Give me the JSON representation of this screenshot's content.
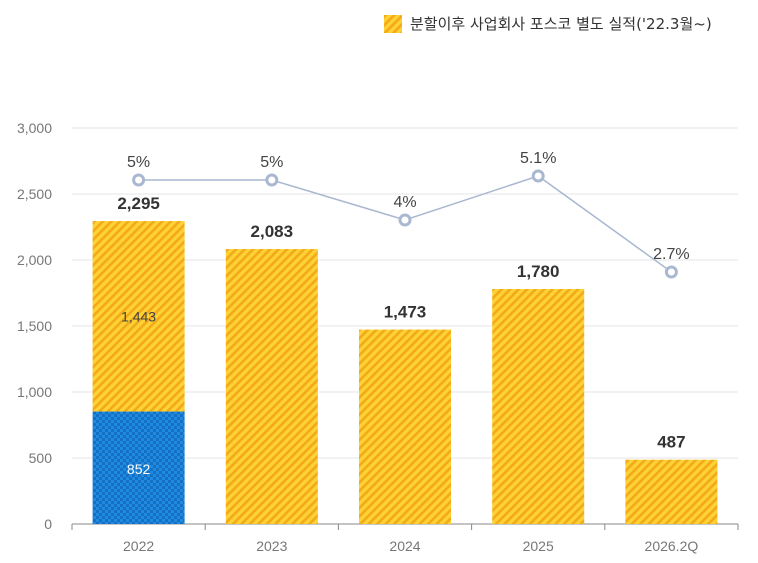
{
  "legend": {
    "label": "분할이후 사업회사 포스코 별도 실적('22.3월~)",
    "color": "#F5BE1E"
  },
  "chart_data": {
    "type": "bar",
    "categories": [
      "2022",
      "2023",
      "2024",
      "2025",
      "2026.2Q"
    ],
    "ylim": [
      0,
      3000
    ],
    "yticks": [
      "0",
      "500",
      "1,000",
      "1,500",
      "2,000",
      "2,500",
      "3,000"
    ],
    "grid": true,
    "legend_position": "top-right",
    "series": [
      {
        "name": "",
        "values": [
          852,
          null,
          null,
          null,
          null
        ],
        "color": "#1E88E5",
        "labels": [
          "852",
          "",
          "",
          "",
          ""
        ]
      },
      {
        "name": "분할이후 사업회사 포스코 별도 실적('22.3월~)",
        "values": [
          1443,
          2083,
          1473,
          1780,
          487
        ],
        "color": "#F5BE1E",
        "labels": [
          "1,443",
          "",
          "",
          "",
          ""
        ]
      }
    ],
    "totals": [
      "2,295",
      "2,083",
      "1,473",
      "1,780",
      "487"
    ],
    "line": {
      "values": [
        5,
        5,
        4,
        5.1,
        2.7
      ],
      "labels": [
        "5%",
        "5%",
        "4%",
        "5.1%",
        "2.7%"
      ],
      "color": "#A9B8D0"
    }
  }
}
